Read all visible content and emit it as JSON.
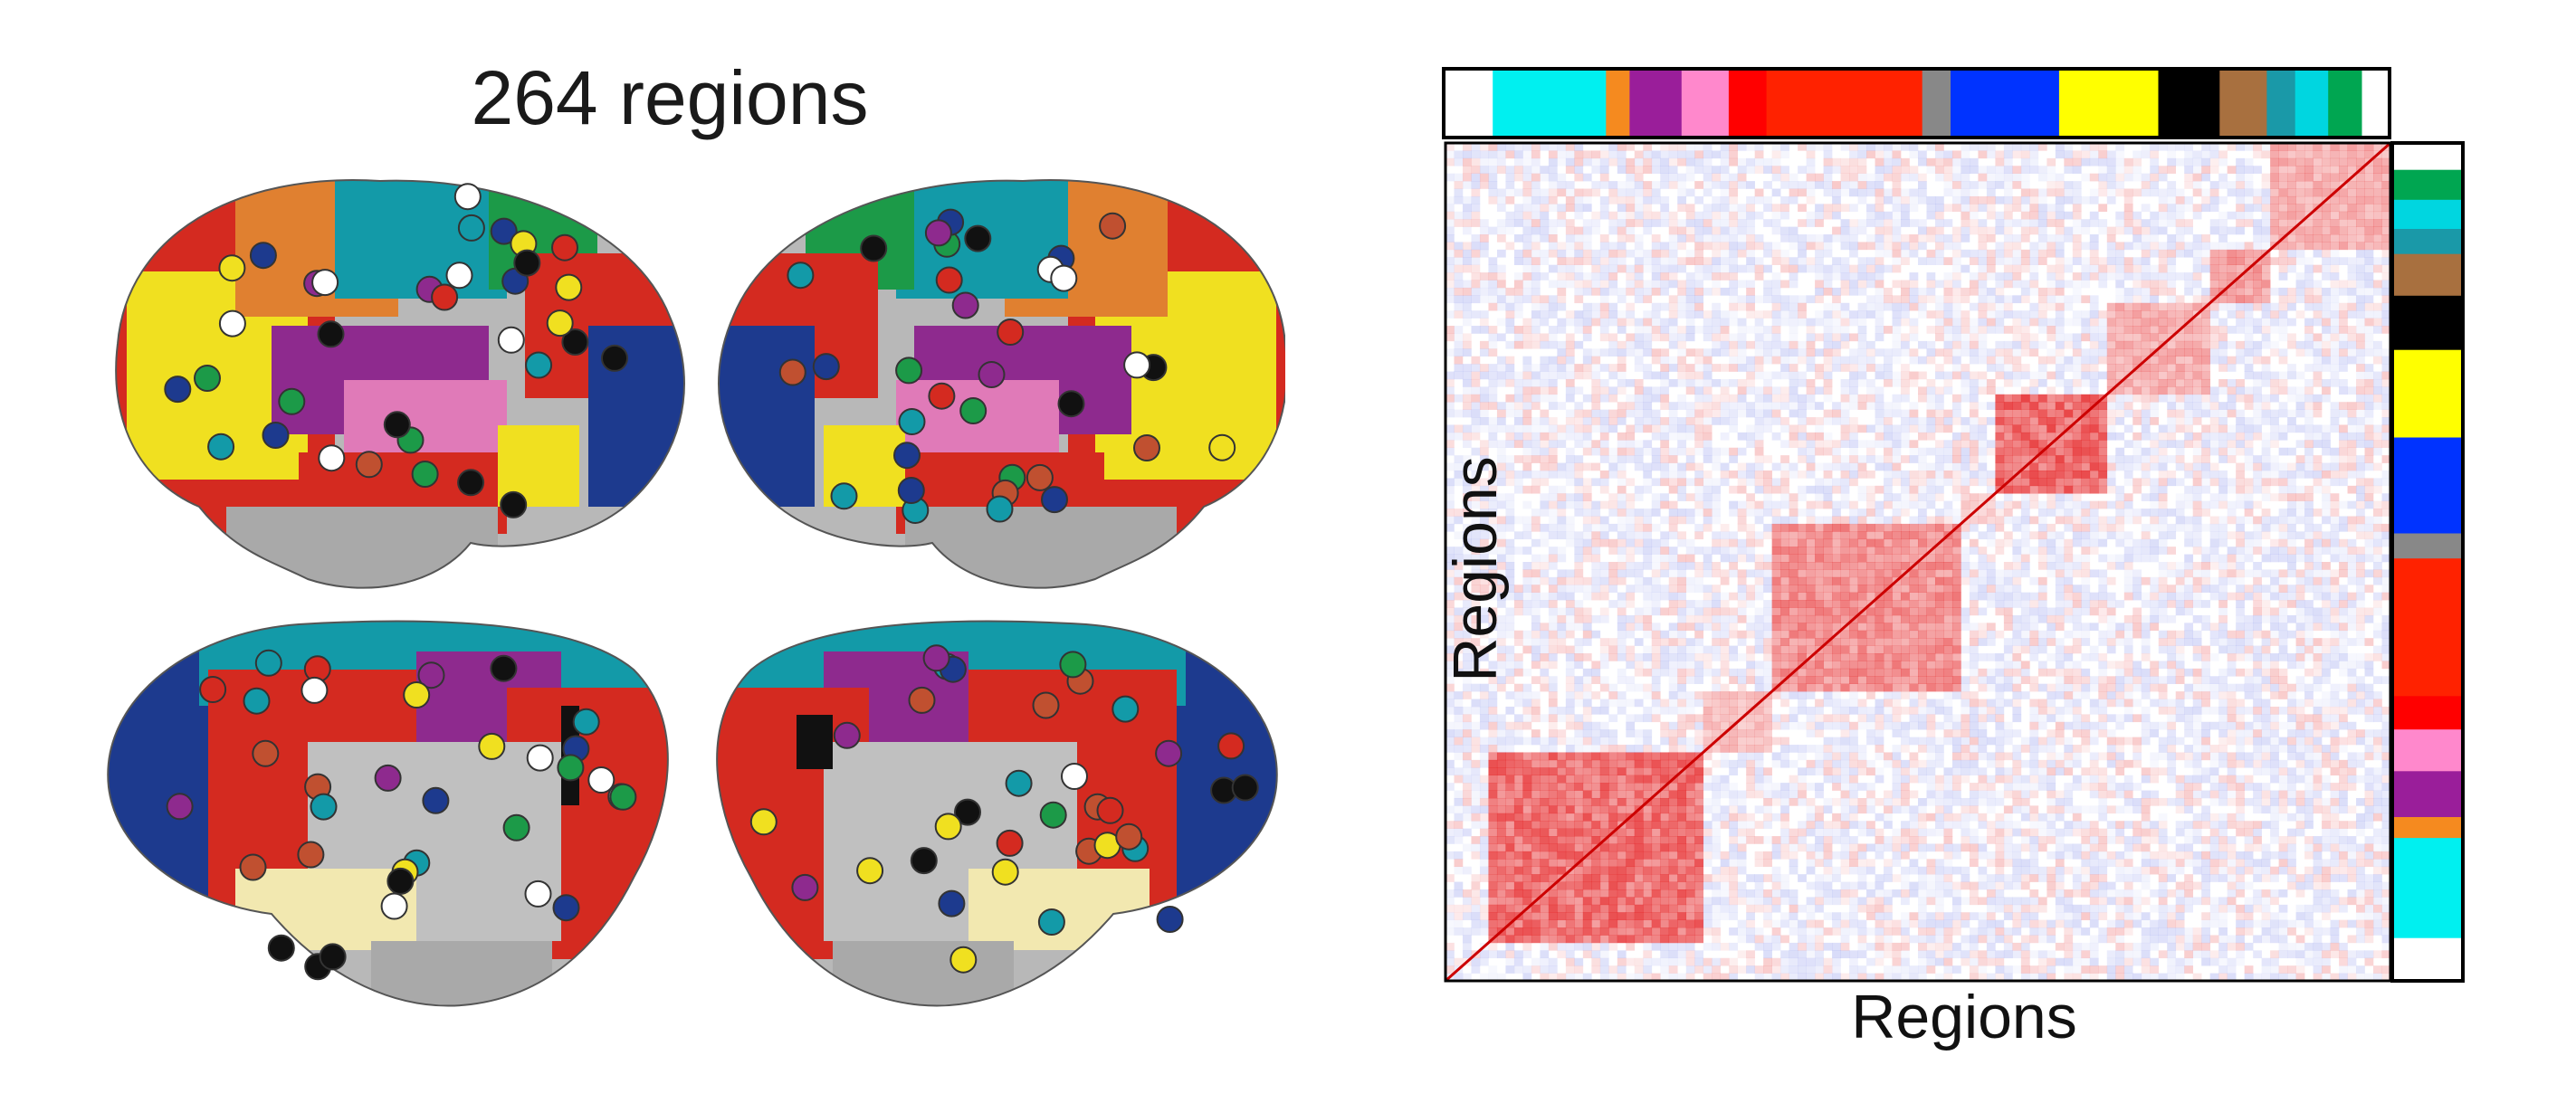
{
  "brain_panel": {
    "title": "264 regions",
    "views": [
      "left-lateral",
      "right-lateral",
      "left-medial",
      "right-medial"
    ]
  },
  "matrix_panel": {
    "xlabel": "Regions",
    "ylabel": "Regions",
    "positive_color": "#e41a1c",
    "negative_color": "#3f4fe0",
    "network_bar_colors": [
      {
        "color": "#ffffff",
        "frac": 0.05
      },
      {
        "color": "#00f0f0",
        "frac": 0.12
      },
      {
        "color": "#f58a1f",
        "frac": 0.025
      },
      {
        "color": "#9a1e9a",
        "frac": 0.055
      },
      {
        "color": "#ff88cc",
        "frac": 0.05
      },
      {
        "color": "#ff0000",
        "frac": 0.04
      },
      {
        "color": "#ff2200",
        "frac": 0.165
      },
      {
        "color": "#888888",
        "frac": 0.03
      },
      {
        "color": "#0033ff",
        "frac": 0.115
      },
      {
        "color": "#ffff00",
        "frac": 0.105
      },
      {
        "color": "#000000",
        "frac": 0.065
      },
      {
        "color": "#a8703f",
        "frac": 0.05
      },
      {
        "color": "#1a99a8",
        "frac": 0.03
      },
      {
        "color": "#00d6e0",
        "frac": 0.035
      },
      {
        "color": "#00a651",
        "frac": 0.035
      }
    ],
    "diagonal_blocks": [
      {
        "start": 0.05,
        "end": 0.275,
        "strength": 0.9
      },
      {
        "start": 0.275,
        "end": 0.345,
        "strength": 0.4
      },
      {
        "start": 0.345,
        "end": 0.55,
        "strength": 0.7
      },
      {
        "start": 0.55,
        "end": 0.58,
        "strength": 0.3
      },
      {
        "start": 0.58,
        "end": 0.7,
        "strength": 0.95
      },
      {
        "start": 0.7,
        "end": 0.805,
        "strength": 0.5
      },
      {
        "start": 0.805,
        "end": 0.87,
        "strength": 0.6
      },
      {
        "start": 0.87,
        "end": 1.0,
        "strength": 0.5
      }
    ]
  }
}
